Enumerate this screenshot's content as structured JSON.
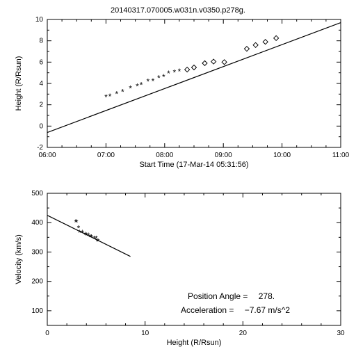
{
  "title": "20140317.070005.w031n.v0350.p278g.",
  "annotations": {
    "pos_angle_label": "Position Angle =",
    "pos_angle_value": "278.",
    "accel_label": "Acceleration =",
    "accel_value": "−7.67 m/s^2"
  },
  "top_chart": {
    "type": "scatter+line",
    "x_axis_label": "Start Time (17-Mar-14 05:31:56)",
    "y_axis_label": "Height (R/Rsun)",
    "x_ticks": [
      "06:00",
      "07:00",
      "08:00",
      "09:00",
      "10:00",
      "11:00"
    ],
    "y_ticks": [
      -2,
      0,
      2,
      4,
      6,
      8,
      10
    ],
    "x_range_minutes": [
      28,
      328
    ],
    "y_range": [
      -2,
      10
    ],
    "fit_line": {
      "m1": 28,
      "h1": -0.6,
      "m2": 328,
      "h2": 9.7
    },
    "asterisk_points": [
      {
        "m": 88,
        "h": 2.7
      },
      {
        "m": 92,
        "h": 2.75
      },
      {
        "m": 99,
        "h": 3.0
      },
      {
        "m": 105,
        "h": 3.2
      },
      {
        "m": 113,
        "h": 3.5
      },
      {
        "m": 120,
        "h": 3.7
      },
      {
        "m": 124,
        "h": 3.85
      },
      {
        "m": 131,
        "h": 4.15
      },
      {
        "m": 136,
        "h": 4.2
      },
      {
        "m": 142,
        "h": 4.5
      },
      {
        "m": 147,
        "h": 4.6
      },
      {
        "m": 152,
        "h": 4.9
      },
      {
        "m": 158,
        "h": 5.0
      },
      {
        "m": 163,
        "h": 5.1
      }
    ],
    "diamond_points": [
      {
        "m": 171,
        "h": 5.3
      },
      {
        "m": 178,
        "h": 5.5
      },
      {
        "m": 189,
        "h": 5.9
      },
      {
        "m": 198,
        "h": 6.05
      },
      {
        "m": 209,
        "h": 6.0
      },
      {
        "m": 232,
        "h": 7.25
      },
      {
        "m": 241,
        "h": 7.6
      },
      {
        "m": 251,
        "h": 7.9
      },
      {
        "m": 262,
        "h": 8.25
      }
    ],
    "background_color": "#ffffff",
    "line_color": "#000000"
  },
  "bottom_chart": {
    "type": "scatter+line",
    "x_axis_label": "Height (R/Rsun)",
    "y_axis_label": "Velocity (km/s)",
    "x_ticks": [
      0,
      10,
      20,
      30
    ],
    "y_ticks": [
      100,
      200,
      300,
      400,
      500
    ],
    "x_range": [
      0,
      30
    ],
    "y_range": [
      50,
      500
    ],
    "fit_line": {
      "h1": 0,
      "v1": 425,
      "h2": 8.5,
      "v2": 285
    },
    "asterisk_points": [
      {
        "h": 2.9,
        "v": 400
      },
      {
        "h": 3.0,
        "v": 400
      },
      {
        "h": 3.2,
        "v": 380
      },
      {
        "h": 3.3,
        "v": 365
      },
      {
        "h": 3.6,
        "v": 365
      },
      {
        "h": 3.9,
        "v": 358
      },
      {
        "h": 4.0,
        "v": 355
      },
      {
        "h": 4.2,
        "v": 355
      },
      {
        "h": 4.4,
        "v": 350
      },
      {
        "h": 4.5,
        "v": 350
      },
      {
        "h": 4.8,
        "v": 345
      },
      {
        "h": 5.0,
        "v": 345
      },
      {
        "h": 5.1,
        "v": 335
      },
      {
        "h": 5.2,
        "v": 335
      }
    ],
    "background_color": "#ffffff",
    "line_color": "#000000"
  }
}
